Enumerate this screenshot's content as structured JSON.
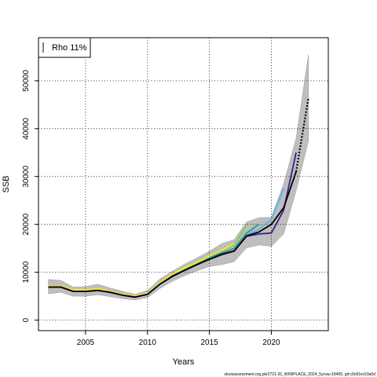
{
  "chart_data": {
    "type": "line",
    "xlabel": "Years",
    "ylabel": "SSB",
    "xlim": [
      2001.2,
      2024.6
    ],
    "ylim": [
      -2200,
      59000
    ],
    "x_ticks": [
      2005,
      2010,
      2015,
      2020
    ],
    "y_ticks": [
      0,
      10000,
      20000,
      30000,
      40000,
      50000
    ],
    "grid": true,
    "legend_position": "top-left",
    "legend_text": "Rho 11%",
    "footer": "stockassessment.org,pkr2721-32_WKBPLACE_2024_5yrsw,r18465, git:c9c81ec53a0d",
    "band": {
      "x": [
        2002,
        2003,
        2004,
        2005,
        2006,
        2007,
        2008,
        2009,
        2010,
        2011,
        2012,
        2013,
        2014,
        2015,
        2016,
        2017,
        2018,
        2019,
        2020,
        2021,
        2022,
        2023
      ],
      "upper": [
        8500,
        8300,
        6900,
        7000,
        7500,
        6700,
        6000,
        5400,
        6200,
        8600,
        10200,
        11700,
        13000,
        14400,
        16000,
        16800,
        20500,
        21400,
        21500,
        28500,
        38000,
        55500
      ],
      "lower": [
        5500,
        5800,
        5000,
        5000,
        5300,
        4900,
        4500,
        4200,
        4700,
        6600,
        8100,
        9300,
        10300,
        11200,
        11600,
        12200,
        15100,
        15700,
        15400,
        18000,
        27000,
        37500
      ]
    },
    "series": [
      {
        "color": "#56b4e9",
        "dashed": false,
        "x": [
          2002,
          2003,
          2004,
          2005,
          2006,
          2007,
          2008,
          2009,
          2010,
          2011,
          2012,
          2013,
          2014,
          2015,
          2016,
          2017,
          2018,
          2019,
          2020,
          2021
        ],
        "values": [
          7000,
          7000,
          6000,
          6000,
          6300,
          5800,
          5200,
          4800,
          5500,
          7600,
          9300,
          10500,
          11700,
          12800,
          13800,
          14500,
          17800,
          19000,
          21000,
          27500
        ]
      },
      {
        "color": "#1f9e89",
        "dashed": false,
        "x": [
          2002,
          2003,
          2004,
          2005,
          2006,
          2007,
          2008,
          2009,
          2010,
          2011,
          2012,
          2013,
          2014,
          2015,
          2016,
          2017,
          2018,
          2019
        ],
        "values": [
          7000,
          7000,
          6100,
          6100,
          6400,
          5900,
          5300,
          4900,
          5500,
          7700,
          9400,
          10600,
          11800,
          13000,
          14100,
          15000,
          18200,
          20000
        ]
      },
      {
        "color": "#7ad151",
        "dashed": false,
        "x": [
          2002,
          2003,
          2004,
          2005,
          2006,
          2007,
          2008,
          2009,
          2010,
          2011,
          2012,
          2013,
          2014,
          2015,
          2016,
          2017,
          2018
        ],
        "values": [
          7100,
          7100,
          6200,
          6200,
          6500,
          6000,
          5400,
          5000,
          5600,
          7800,
          9500,
          10800,
          12000,
          13300,
          14500,
          15700,
          19800
        ]
      },
      {
        "color": "#fde725",
        "dashed": false,
        "x": [
          2002,
          2003,
          2004,
          2005,
          2006,
          2007,
          2008,
          2009,
          2010,
          2011,
          2012,
          2013,
          2014,
          2015,
          2016,
          2017
        ],
        "values": [
          7100,
          7100,
          6300,
          6300,
          6600,
          6000,
          5400,
          5000,
          5600,
          7800,
          9600,
          10900,
          12100,
          13400,
          14600,
          16000
        ]
      },
      {
        "color": "#3b1c8c",
        "dashed": false,
        "x": [
          2002,
          2003,
          2004,
          2005,
          2006,
          2007,
          2008,
          2009,
          2010,
          2011,
          2012,
          2013,
          2014,
          2015,
          2016,
          2017,
          2018,
          2019,
          2020,
          2021,
          2022
        ],
        "values": [
          6900,
          6900,
          6000,
          6000,
          6200,
          5800,
          5200,
          4800,
          5400,
          7500,
          9200,
          10400,
          11600,
          12700,
          13800,
          14500,
          17500,
          18000,
          18200,
          23000,
          35000
        ]
      },
      {
        "color": "#000000",
        "dashed": false,
        "x": [
          2002,
          2003,
          2004,
          2005,
          2006,
          2007,
          2008,
          2009,
          2010,
          2011,
          2012,
          2013,
          2014,
          2015,
          2016,
          2017,
          2018,
          2019,
          2020,
          2021,
          2022
        ],
        "values": [
          6900,
          6900,
          6000,
          6000,
          6200,
          5800,
          5200,
          4800,
          5400,
          7500,
          9100,
          10400,
          11600,
          12700,
          13700,
          14400,
          17600,
          18400,
          20000,
          23500,
          31000
        ]
      },
      {
        "color": "#000000",
        "dashed": true,
        "x": [
          2022,
          2023
        ],
        "values": [
          31000,
          46500
        ]
      }
    ]
  }
}
